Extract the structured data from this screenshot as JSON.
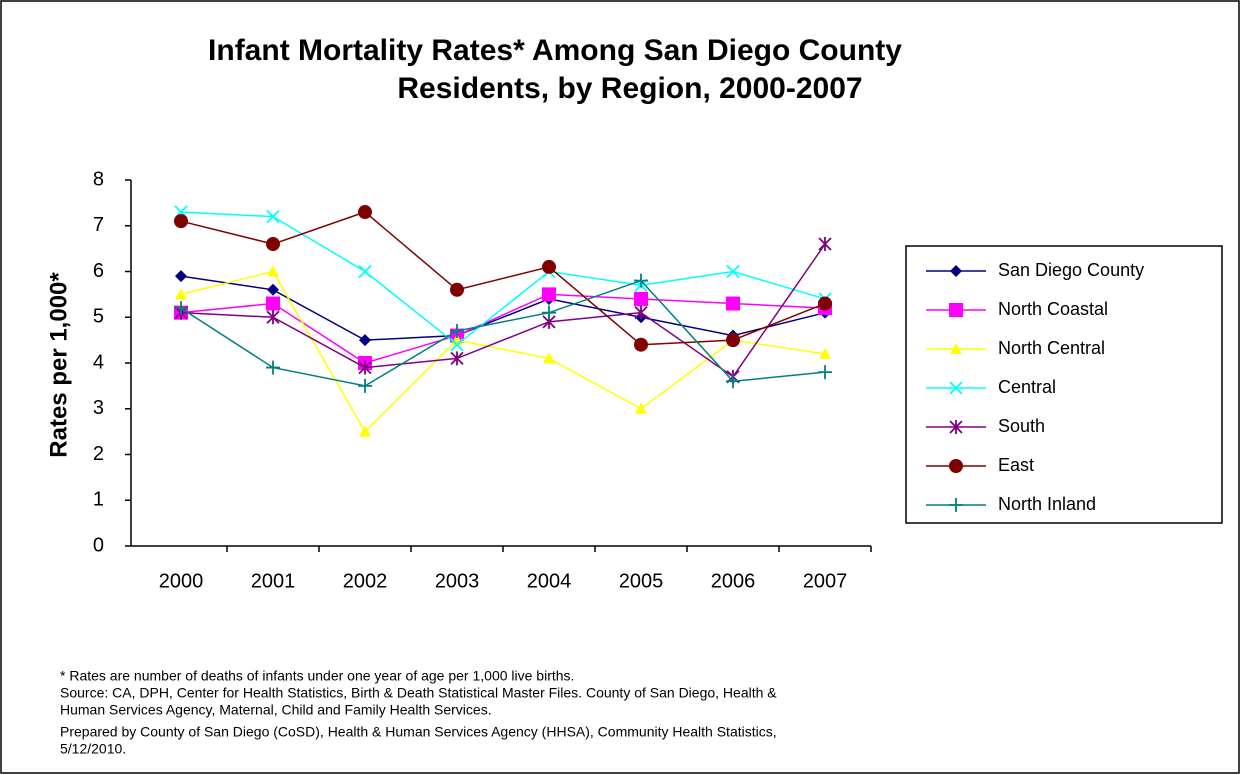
{
  "chart_data": {
    "type": "line",
    "title": [
      "Infant Mortality Rates* Among San Diego County",
      "Residents, by Region, 2000-2007"
    ],
    "y_label": "Rates per 1,000*",
    "categories": [
      "2000",
      "2001",
      "2002",
      "2003",
      "2004",
      "2005",
      "2006",
      "2007"
    ],
    "ylim": [
      0,
      8
    ],
    "yticks": [
      0,
      1,
      2,
      3,
      4,
      5,
      6,
      7,
      8
    ],
    "legend": "right",
    "series": [
      {
        "name": "San Diego County",
        "color": "#000080",
        "marker": "diamond",
        "values": [
          5.9,
          5.6,
          4.5,
          4.6,
          5.4,
          5.0,
          4.6,
          5.1
        ]
      },
      {
        "name": "North Coastal",
        "color": "#ff00ff",
        "marker": "square",
        "values": [
          5.1,
          5.3,
          4.0,
          4.6,
          5.5,
          5.4,
          5.3,
          5.2
        ]
      },
      {
        "name": "North Central",
        "color": "#ffff00",
        "marker": "triangle",
        "values": [
          5.5,
          6.0,
          2.5,
          4.5,
          4.1,
          3.0,
          4.5,
          4.2
        ]
      },
      {
        "name": "Central",
        "color": "#00ffff",
        "marker": "x",
        "values": [
          7.3,
          7.2,
          6.0,
          4.4,
          6.0,
          5.7,
          6.0,
          5.4
        ]
      },
      {
        "name": "South",
        "color": "#800080",
        "marker": "star",
        "values": [
          5.1,
          5.0,
          3.9,
          4.1,
          4.9,
          5.1,
          3.7,
          6.6
        ]
      },
      {
        "name": "East",
        "color": "#800000",
        "marker": "circle",
        "values": [
          7.1,
          6.6,
          7.3,
          5.6,
          6.1,
          4.4,
          4.5,
          5.3
        ]
      },
      {
        "name": "North Inland",
        "color": "#008080",
        "marker": "plus",
        "values": [
          5.2,
          3.9,
          3.5,
          4.7,
          5.1,
          5.8,
          3.6,
          3.8
        ]
      }
    ],
    "notes": [
      "* Rates are number of deaths of infants under one year of age per 1,000 live births.",
      "Source: CA, DPH, Center for Health Statistics, Birth & Death Statistical Master Files. County of San Diego, Health &",
      "Human Services Agency, Maternal, Child and Family Health Services.",
      "Prepared by County of San Diego (CoSD), Health & Human Services Agency (HHSA), Community Health Statistics,",
      "5/12/2010."
    ]
  }
}
